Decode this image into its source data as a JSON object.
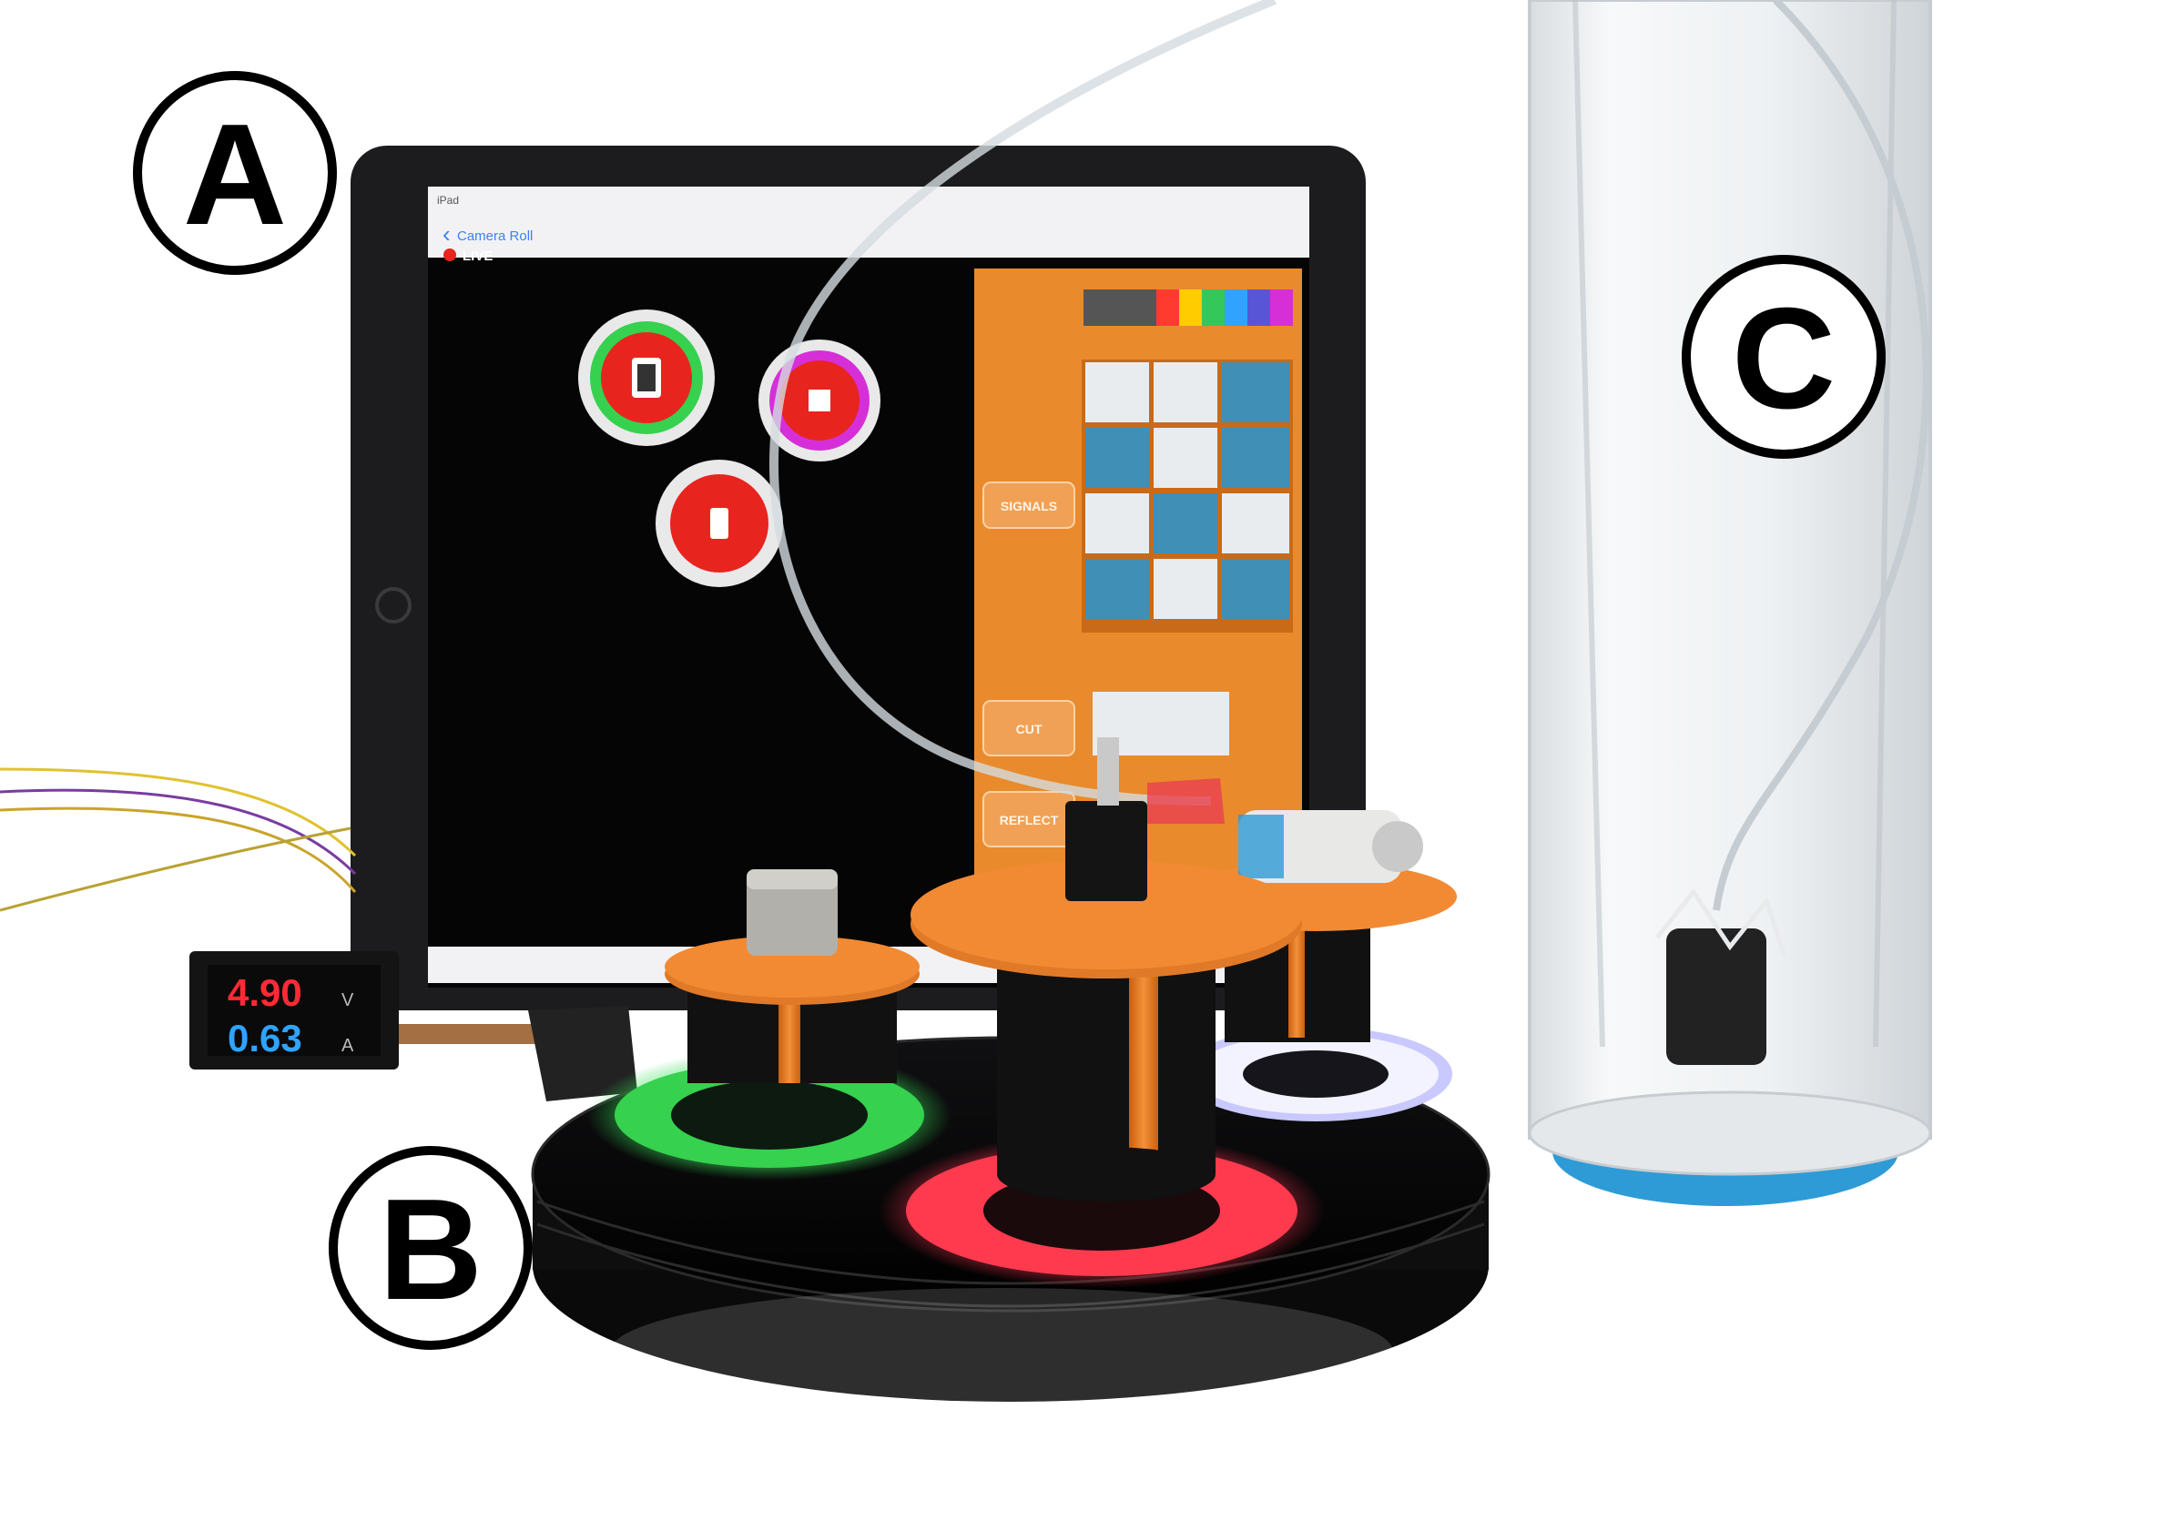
{
  "labels": {
    "a": "A",
    "b": "B",
    "c": "C"
  },
  "tablet": {
    "status_left": "iPad",
    "back_label": "Camera Roll",
    "live_label": "LIVE",
    "signals_label": "SIGNALS",
    "cut_label": "CUT",
    "reflect_label": "REFLECT"
  },
  "meter": {
    "voltage": "4.90",
    "voltage_unit": "V",
    "current": "0.63",
    "current_unit": "A"
  },
  "colors": {
    "background": "#ffffff",
    "tablet_frame": "#1c1c1e",
    "app_panel_orange": "#e98a2c",
    "ring_green": "#36d14e",
    "ring_red": "#ff3a4e",
    "ring_white": "#e9ecff",
    "copper_disc": "#f07a22",
    "cap_blue": "#2e9bd6",
    "meter_red": "#ff2a35",
    "meter_blue": "#2fa3ff",
    "button_red": "#e8241f",
    "button_magenta": "#d62fd8"
  },
  "icons": [
    "phone-node-icon",
    "sensor-node-icon",
    "motor-node-icon"
  ]
}
